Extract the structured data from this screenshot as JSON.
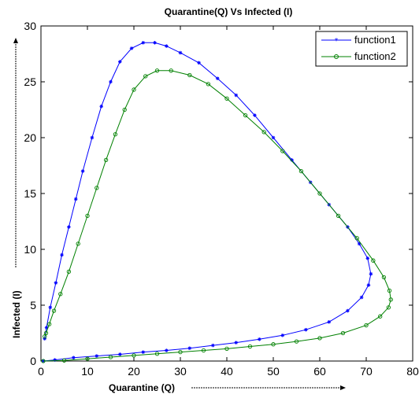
{
  "chart_data": {
    "type": "line",
    "title": "Quarantine(Q) Vs Infected (I)",
    "xlabel": "Quarantine (Q)",
    "ylabel": "Infected (I)",
    "xlim": [
      0,
      80
    ],
    "ylim": [
      0,
      30
    ],
    "xticks": [
      0,
      10,
      20,
      30,
      40,
      50,
      60,
      70,
      80
    ],
    "yticks": [
      0,
      5,
      10,
      15,
      20,
      25,
      30
    ],
    "grid": false,
    "legend_position": "top-right",
    "series": [
      {
        "name": "function1",
        "color": "#0000ff",
        "marker": "star",
        "points": [
          [
            0.5,
            0.0
          ],
          [
            3,
            0.1
          ],
          [
            7,
            0.3
          ],
          [
            12,
            0.45
          ],
          [
            17,
            0.6
          ],
          [
            22,
            0.8
          ],
          [
            27,
            0.95
          ],
          [
            32,
            1.15
          ],
          [
            37,
            1.4
          ],
          [
            42,
            1.65
          ],
          [
            47,
            1.95
          ],
          [
            52,
            2.3
          ],
          [
            57,
            2.8
          ],
          [
            62,
            3.5
          ],
          [
            66,
            4.5
          ],
          [
            69,
            5.7
          ],
          [
            70.5,
            6.8
          ],
          [
            71,
            7.8
          ],
          [
            70.3,
            9.2
          ],
          [
            68.5,
            10.5
          ],
          [
            66,
            12.0
          ],
          [
            62,
            14.0
          ],
          [
            58,
            16.0
          ],
          [
            54,
            18.0
          ],
          [
            50,
            20.0
          ],
          [
            46,
            22.0
          ],
          [
            42,
            23.8
          ],
          [
            38,
            25.3
          ],
          [
            34,
            26.7
          ],
          [
            30,
            27.6
          ],
          [
            27,
            28.2
          ],
          [
            24.5,
            28.5
          ],
          [
            22,
            28.5
          ],
          [
            19.5,
            28.0
          ],
          [
            17,
            26.8
          ],
          [
            15,
            25.0
          ],
          [
            13,
            22.8
          ],
          [
            11,
            20.0
          ],
          [
            9,
            17.0
          ],
          [
            7.5,
            14.5
          ],
          [
            6,
            12.0
          ],
          [
            4.5,
            9.5
          ],
          [
            3.2,
            7.0
          ],
          [
            2,
            4.8
          ],
          [
            1.2,
            3.0
          ],
          [
            0.8,
            2.0
          ]
        ]
      },
      {
        "name": "function2",
        "color": "#008000",
        "marker": "circle",
        "points": [
          [
            0.5,
            0.0
          ],
          [
            5,
            0.05
          ],
          [
            10,
            0.2
          ],
          [
            15,
            0.35
          ],
          [
            20,
            0.5
          ],
          [
            25,
            0.65
          ],
          [
            30,
            0.8
          ],
          [
            35,
            0.95
          ],
          [
            40,
            1.1
          ],
          [
            45,
            1.3
          ],
          [
            50,
            1.5
          ],
          [
            55,
            1.75
          ],
          [
            60,
            2.05
          ],
          [
            65,
            2.5
          ],
          [
            70,
            3.2
          ],
          [
            73,
            4.0
          ],
          [
            74.8,
            4.8
          ],
          [
            75.3,
            5.5
          ],
          [
            75,
            6.3
          ],
          [
            73.8,
            7.5
          ],
          [
            71.5,
            9.0
          ],
          [
            68,
            11.0
          ],
          [
            64,
            13.0
          ],
          [
            60,
            15.0
          ],
          [
            56,
            17.0
          ],
          [
            52,
            18.8
          ],
          [
            48,
            20.5
          ],
          [
            44,
            22.0
          ],
          [
            40,
            23.5
          ],
          [
            36,
            24.8
          ],
          [
            32,
            25.6
          ],
          [
            28,
            26.0
          ],
          [
            25,
            26.0
          ],
          [
            22.5,
            25.5
          ],
          [
            20,
            24.3
          ],
          [
            18,
            22.5
          ],
          [
            16,
            20.3
          ],
          [
            14,
            18.0
          ],
          [
            12,
            15.5
          ],
          [
            10,
            13.0
          ],
          [
            8,
            10.5
          ],
          [
            6,
            8.0
          ],
          [
            4.2,
            6.0
          ],
          [
            2.8,
            4.5
          ],
          [
            1.8,
            3.3
          ],
          [
            1.1,
            2.5
          ],
          [
            0.8,
            2.2
          ]
        ]
      }
    ]
  }
}
